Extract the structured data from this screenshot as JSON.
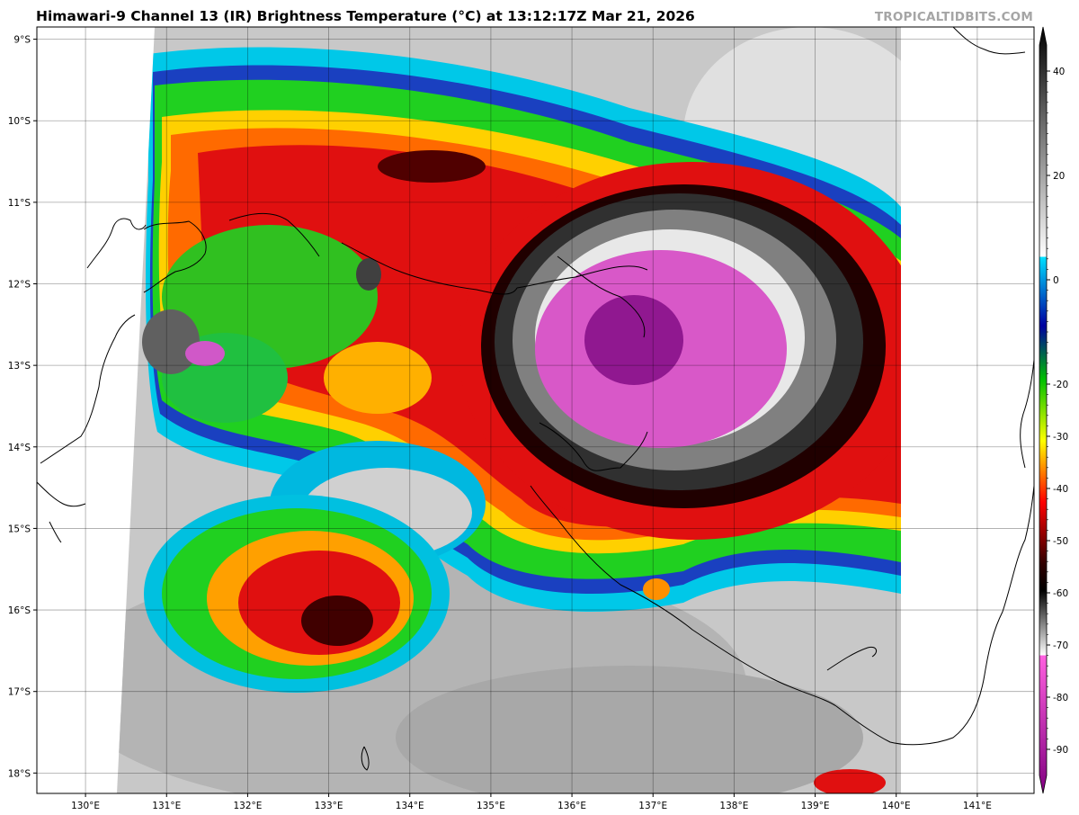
{
  "header": {
    "title": "Himawari-9 Channel 13 (IR) Brightness Temperature (°C) at 13:12:17Z Mar 21, 2026",
    "watermark": "TROPICALTIDBITS.COM"
  },
  "map": {
    "lon_range": [
      129.4,
      141.7
    ],
    "lat_range": [
      -18.25,
      -8.85
    ],
    "lon_ticks": [
      "130°E",
      "131°E",
      "132°E",
      "133°E",
      "134°E",
      "135°E",
      "136°E",
      "137°E",
      "138°E",
      "139°E",
      "140°E",
      "141°E"
    ],
    "lat_ticks": [
      "9°S",
      "10°S",
      "11°S",
      "12°S",
      "13°S",
      "14°S",
      "15°S",
      "16°S",
      "17°S",
      "18°S"
    ],
    "grid": true
  },
  "colorbar": {
    "range": [
      -95,
      45
    ],
    "ticks": [
      "40",
      "20",
      "0",
      "-20",
      "-30",
      "-40",
      "-50",
      "-60",
      "-70",
      "-80",
      "-90"
    ]
  },
  "colors": {
    "magenta": "#e060c8",
    "purple": "#a020a0",
    "black": "#101010",
    "red": "#d81010",
    "orange": "#ff8c00",
    "yellow": "#ffe000",
    "green": "#20d020",
    "cyan": "#00c8e8",
    "blue": "#1040c0"
  }
}
